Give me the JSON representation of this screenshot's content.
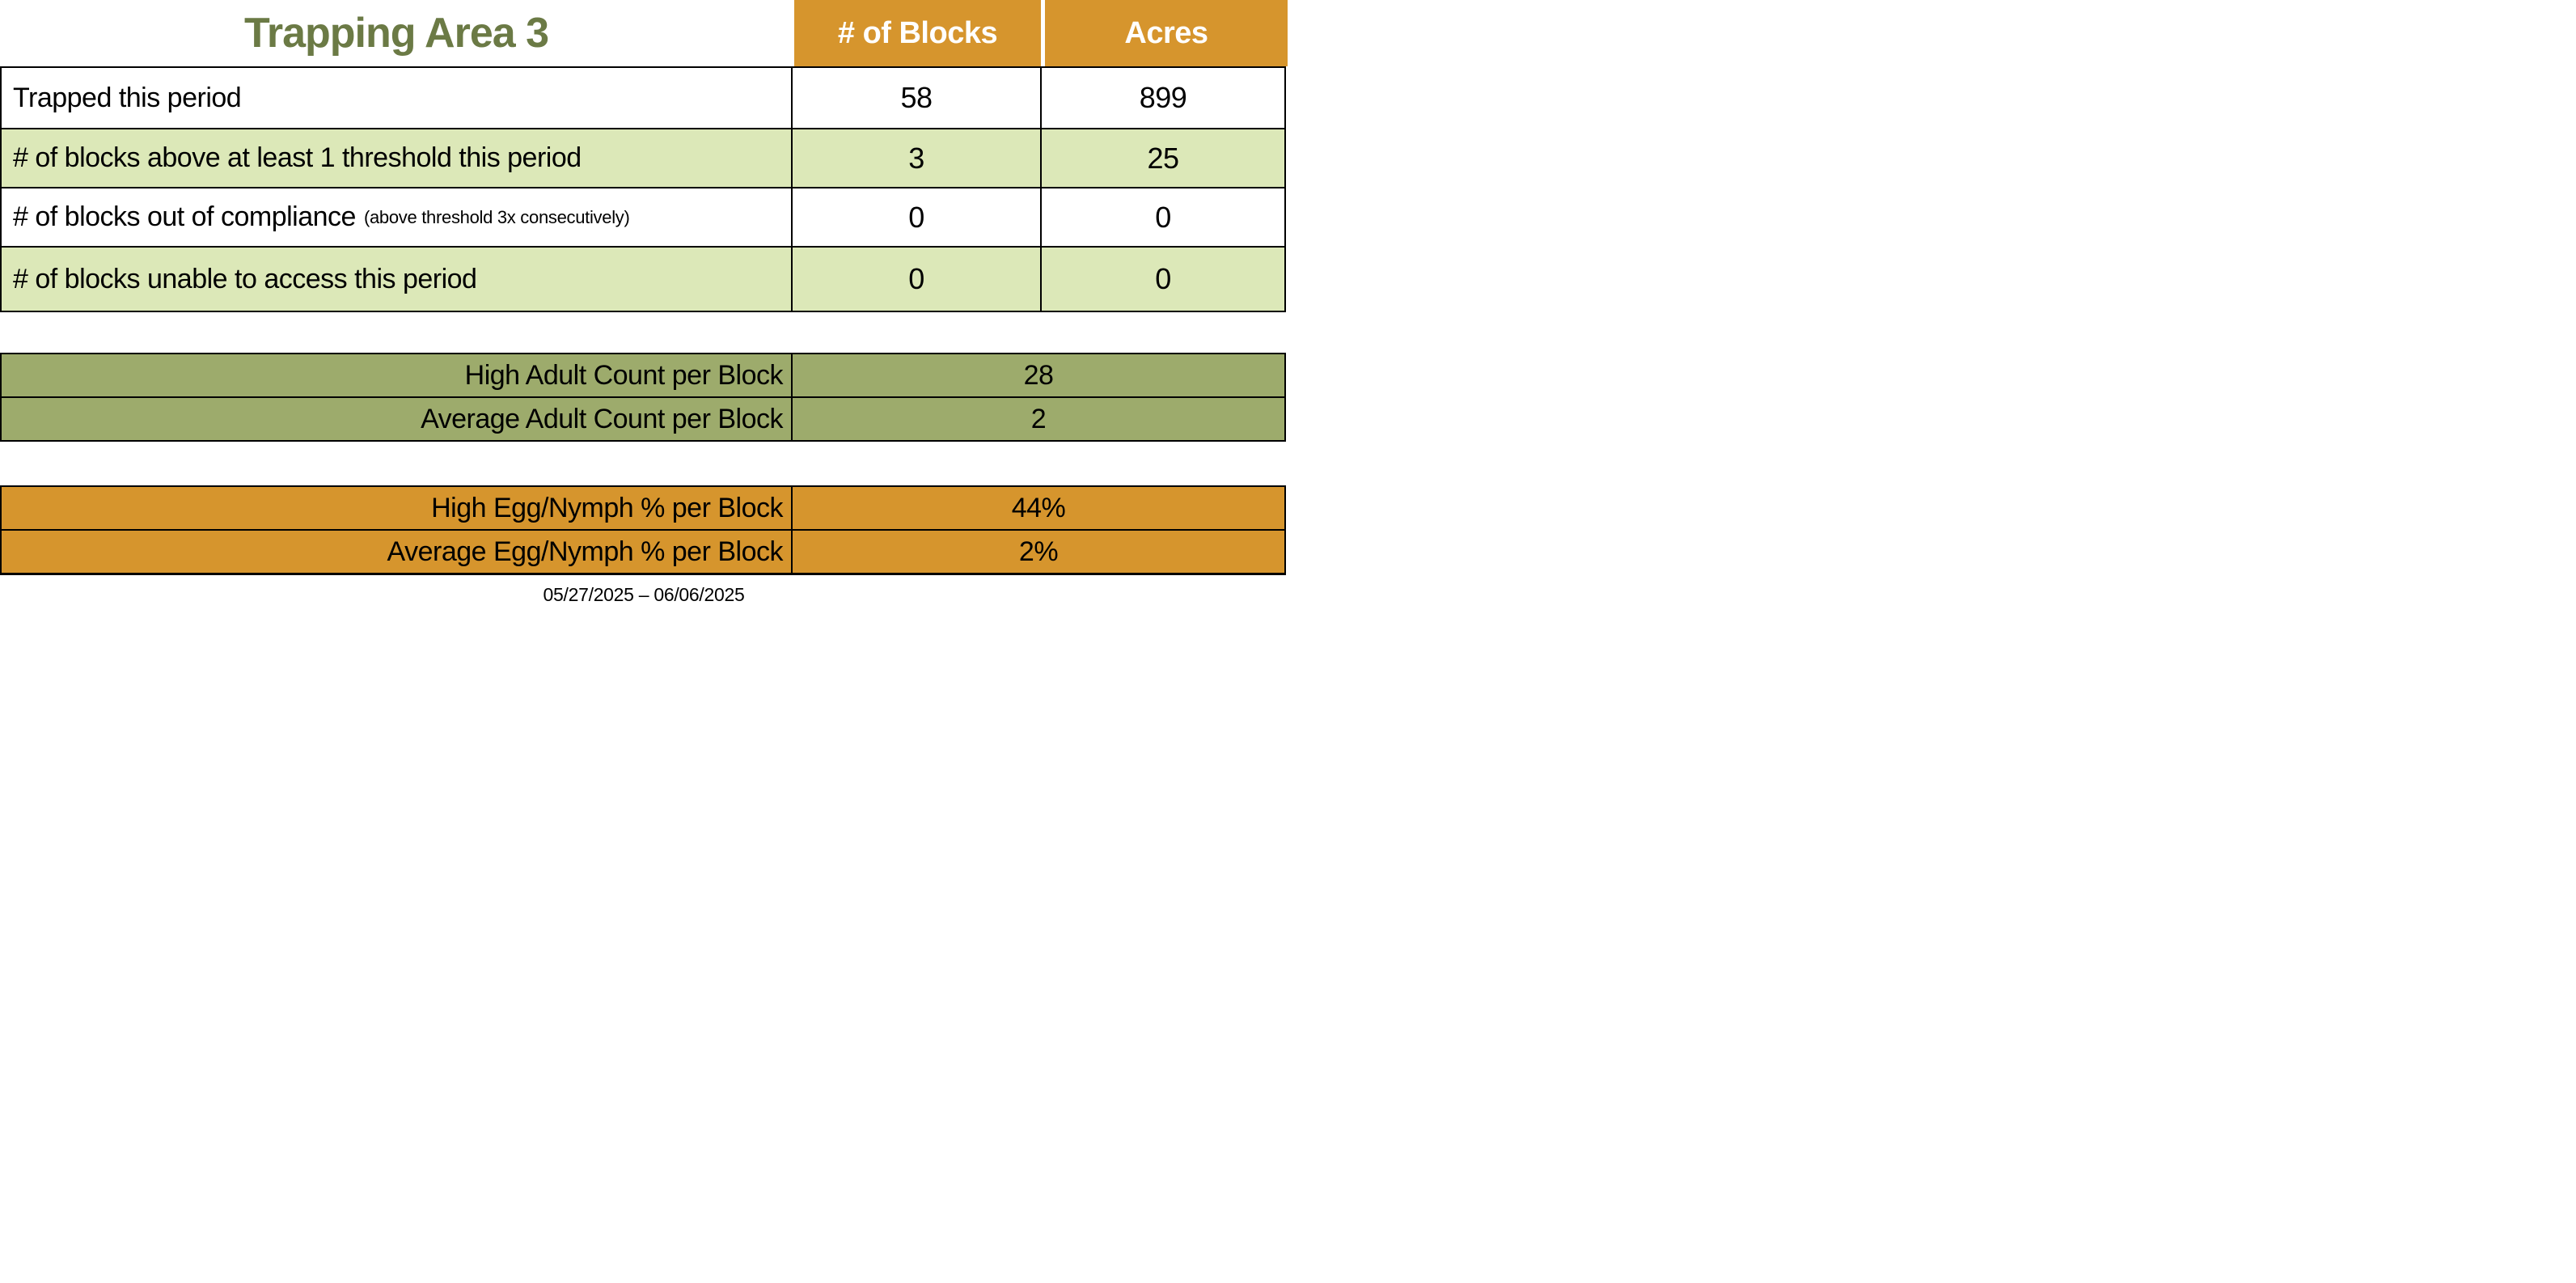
{
  "title": "Trapping Area 3",
  "columns": {
    "blocks": "# of Blocks",
    "acres": "Acres"
  },
  "main_table": {
    "rows": [
      {
        "label": "Trapped this period",
        "sub": "",
        "blocks": "58",
        "acres": "899"
      },
      {
        "label": "# of blocks above at least 1 threshold this period",
        "sub": "",
        "blocks": "3",
        "acres": "25"
      },
      {
        "label": "# of blocks out of compliance",
        "sub": "(above threshold 3x consecutively)",
        "blocks": "0",
        "acres": "0"
      },
      {
        "label": "# of blocks unable to access this period",
        "sub": "",
        "blocks": "0",
        "acres": "0"
      }
    ]
  },
  "adult_section": {
    "rows": [
      {
        "label": "High Adult Count per Block",
        "value": "28"
      },
      {
        "label": "Average Adult Count per Block",
        "value": "2"
      }
    ]
  },
  "egg_section": {
    "rows": [
      {
        "label": "High Egg/Nymph % per Block",
        "value": "44%"
      },
      {
        "label": "Average Egg/Nymph % per Block",
        "value": "2%"
      }
    ]
  },
  "date_range": "05/27/2025 – 06/06/2025",
  "colors": {
    "header_orange": "#D6952D",
    "row_light_green": "#DCE8B8",
    "adult_olive": "#9DAB6C",
    "title_green": "#6B7A45",
    "border_black": "#000000",
    "header_text_white": "#FFFFFF"
  }
}
